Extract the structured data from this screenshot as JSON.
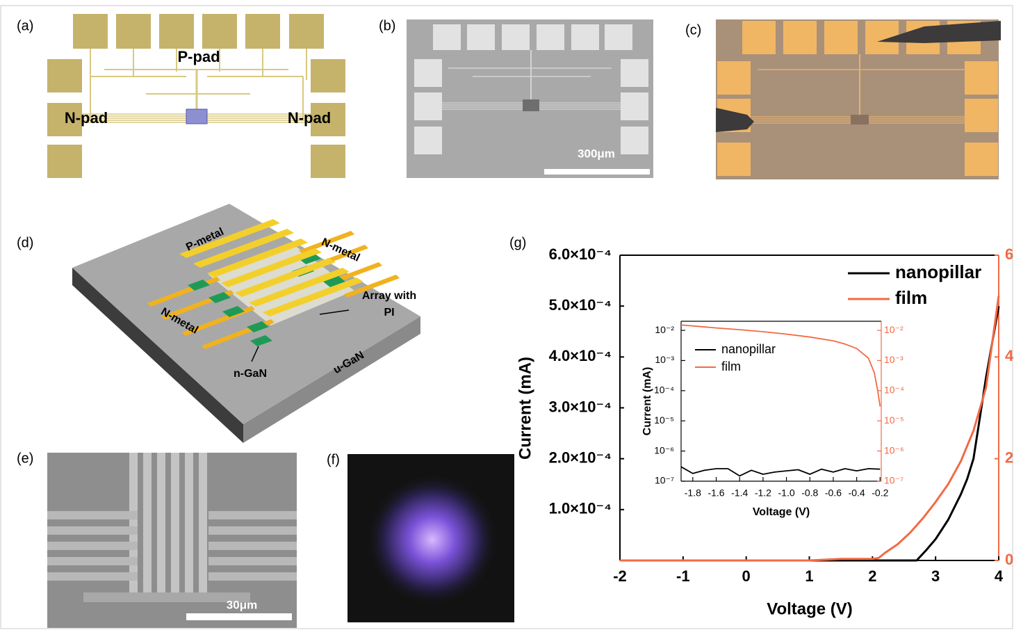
{
  "panels": {
    "a": {
      "label": "(a)",
      "texts": [
        "P-pad",
        "N-pad",
        "N-pad"
      ]
    },
    "b": {
      "label": "(b)",
      "scale_bar": "300μm"
    },
    "c": {
      "label": "(c)"
    },
    "d": {
      "label": "(d)",
      "texts": [
        "P-metal",
        "N-metal",
        "N-metal",
        "n-GaN",
        "u-GaN"
      ],
      "array_label": [
        "Array with",
        "PI"
      ]
    },
    "e": {
      "label": "(e)",
      "scale_bar": "30μm"
    },
    "f": {
      "label": "(f)"
    },
    "g": {
      "label": "(g)"
    }
  },
  "chart_data": [
    {
      "type": "line",
      "x_label": "Voltage (V)",
      "y_label": "Current (mA)",
      "xlim": [
        -2,
        4
      ],
      "xticks": [
        -2,
        -1,
        0,
        1,
        2,
        3,
        4
      ],
      "ylim": [
        0,
        0.0006
      ],
      "yticks": [
        {
          "value": 0.0001,
          "label": "1.0×10⁻⁴"
        },
        {
          "value": 0.0002,
          "label": "2.0×10⁻⁴"
        },
        {
          "value": 0.0003,
          "label": "3.0×10⁻⁴"
        },
        {
          "value": 0.0004,
          "label": "4.0×10⁻⁴"
        },
        {
          "value": 0.0005,
          "label": "5.0×10⁻⁴"
        },
        {
          "value": 0.0006,
          "label": "6.0×10⁻⁴"
        }
      ],
      "y2lim": [
        0,
        6
      ],
      "y2ticks": [
        0,
        2,
        4,
        6
      ],
      "y2_color": "#f26a43",
      "legend": "upper right",
      "series": [
        {
          "name": "nanopillar",
          "color": "#000000",
          "x": [
            -2,
            2.7,
            2.85,
            3.0,
            3.2,
            3.4,
            3.5,
            3.6,
            3.7,
            3.8,
            3.9,
            4.0
          ],
          "values": [
            0,
            0,
            2e-05,
            4.2e-05,
            8e-05,
            0.00013,
            0.00016,
            0.0002,
            0.00028,
            0.00036,
            0.00043,
            0.0005
          ]
        },
        {
          "name": "film",
          "color": "#f26a43",
          "axis": "y2",
          "x": [
            -2,
            -1,
            0,
            1,
            1.5,
            2,
            2.1,
            2.2,
            2.4,
            2.6,
            2.8,
            3.0,
            3.2,
            3.4,
            3.6,
            3.8,
            4.0
          ],
          "values": [
            0,
            0,
            0,
            0,
            0.03,
            0.03,
            0.05,
            0.15,
            0.32,
            0.55,
            0.83,
            1.15,
            1.5,
            1.95,
            2.55,
            3.4,
            5.2
          ]
        }
      ]
    },
    {
      "type": "line",
      "x_label": "Voltage (V)",
      "y_label": "Current (mA)",
      "log_y": true,
      "xlim": [
        -1.9,
        -0.19
      ],
      "xticks": [
        -1.8,
        -1.6,
        -1.4,
        -1.2,
        {
          "value": -1,
          "label": "-1.0"
        },
        -0.8,
        -0.6,
        -0.4,
        -0.2
      ],
      "ylim": [
        1e-07,
        0.02
      ],
      "yticks": [
        {
          "value": 1e-07,
          "label": "10⁻⁷"
        },
        {
          "value": 1e-06,
          "label": "10⁻⁶"
        },
        {
          "value": 1e-05,
          "label": "10⁻⁵"
        },
        {
          "value": 0.0001,
          "label": "10⁻⁴"
        },
        {
          "value": 0.001,
          "label": "10⁻³"
        },
        {
          "value": 0.01,
          "label": "10⁻²"
        }
      ],
      "y2lim": [
        1e-07,
        0.02
      ],
      "y2ticks": [
        {
          "value": 1e-07,
          "label": "10⁻⁷"
        },
        {
          "value": 1e-06,
          "label": "10⁻⁶"
        },
        {
          "value": 1e-05,
          "label": "10⁻⁵"
        },
        {
          "value": 0.0001,
          "label": "10⁻⁴"
        },
        {
          "value": 0.001,
          "label": "10⁻³"
        },
        {
          "value": 0.01,
          "label": "10⁻²"
        }
      ],
      "y2_color": "#f26a43",
      "legend": "upper left",
      "series": [
        {
          "name": "nanopillar",
          "color": "#000000",
          "x": [
            -1.9,
            -1.8,
            -1.7,
            -1.6,
            -1.5,
            -1.4,
            -1.3,
            -1.2,
            -1.1,
            -1.0,
            -0.9,
            -0.8,
            -0.7,
            -0.6,
            -0.5,
            -0.4,
            -0.3,
            -0.2
          ],
          "values": [
            3e-07,
            1.8e-07,
            2.3e-07,
            2.6e-07,
            2.6e-07,
            1.5e-07,
            2.3e-07,
            1.7e-07,
            2e-07,
            2.2e-07,
            2.4e-07,
            1.7e-07,
            2.5e-07,
            2e-07,
            2.6e-07,
            2.2e-07,
            2.6e-07,
            2.5e-07
          ]
        },
        {
          "name": "film",
          "color": "#f26a43",
          "axis": "y2",
          "x": [
            -1.9,
            -1.8,
            -1.6,
            -1.4,
            -1.2,
            -1.0,
            -0.8,
            -0.6,
            -0.5,
            -0.4,
            -0.3,
            -0.25,
            -0.22,
            -0.2
          ],
          "values": [
            0.015,
            0.014,
            0.012,
            0.0105,
            0.009,
            0.0075,
            0.006,
            0.0045,
            0.0035,
            0.0025,
            0.0012,
            0.0004,
            0.0001,
            3e-05
          ]
        }
      ]
    }
  ]
}
